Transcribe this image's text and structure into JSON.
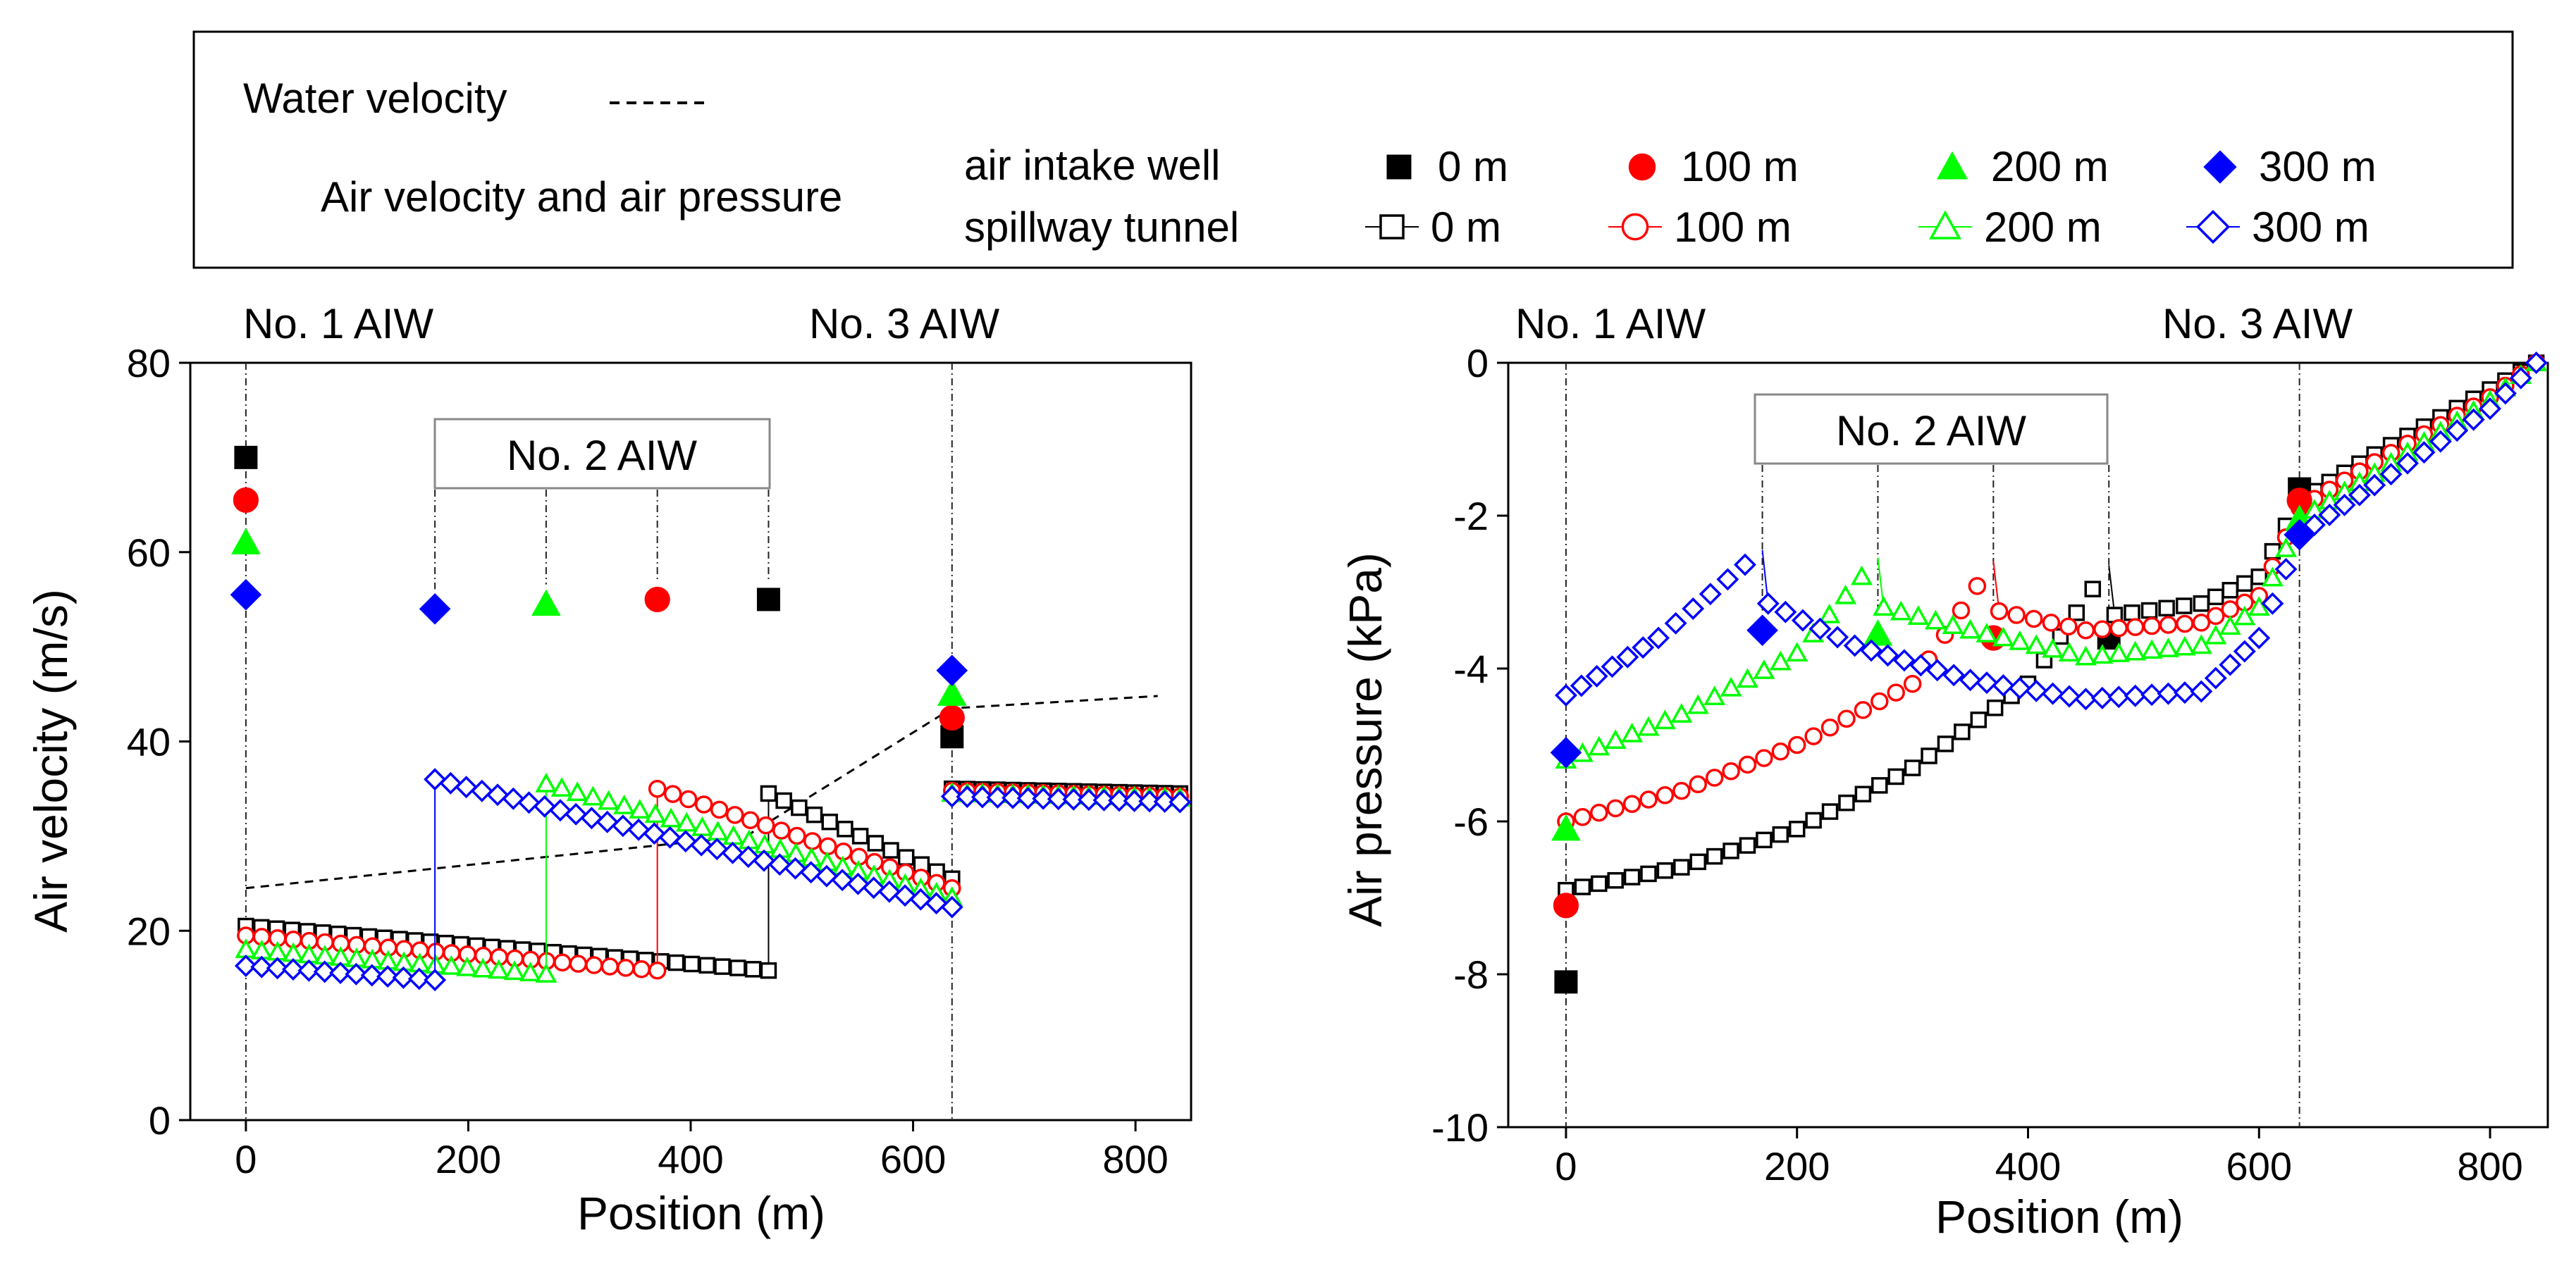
{
  "legend": {
    "water_velocity_label": "Water velocity",
    "air_label": "Air velocity and air pressure",
    "row_intake_label": "air intake well",
    "row_tunnel_label": "spillway tunnel",
    "entries": [
      {
        "label": "0 m",
        "color": "#000000",
        "filled_shape": "square",
        "open_shape": "square"
      },
      {
        "label": "100 m",
        "color": "#ff0000",
        "filled_shape": "circle",
        "open_shape": "circle"
      },
      {
        "label": "200 m",
        "color": "#00ff00",
        "filled_shape": "triangle",
        "open_shape": "triangle"
      },
      {
        "label": "300 m",
        "color": "#0000ff",
        "filled_shape": "diamond",
        "open_shape": "diamond"
      }
    ]
  },
  "chart_data": [
    {
      "type": "scatter",
      "id": "velocity",
      "xlabel": "Position (m)",
      "ylabel": "Air velocity (m/s)",
      "xlim": [
        -50,
        850
      ],
      "ylim": [
        0,
        80
      ],
      "xticks": [
        0,
        200,
        400,
        600,
        800
      ],
      "yticks": [
        0,
        20,
        40,
        60,
        80
      ],
      "annotations": {
        "aiw1": "No. 1 AIW",
        "aiw2": "No. 2 AIW",
        "aiw3": "No. 3 AIW"
      },
      "aiw_positions": {
        "aiw1": 0,
        "aiw3": 635,
        "aiw2": [
          170,
          270,
          370,
          470
        ]
      },
      "water_velocity": {
        "x": [
          0,
          450,
          635,
          820
        ],
        "y": [
          24.5,
          30,
          43.5,
          44.8
        ]
      },
      "series": [
        {
          "name": "0 m",
          "color": "#000000",
          "intake": [
            {
              "x": 0,
              "y": 70
            },
            {
              "x": 470,
              "y": 55
            },
            {
              "x": 635,
              "y": 40.5
            }
          ],
          "tunnel": [
            {
              "x0": 0,
              "x1": 470,
              "y0": 20.5,
              "y1": 15.8
            },
            {
              "x0": 470,
              "x1": 635,
              "y0": 34.5,
              "y1": 25.5
            },
            {
              "x0": 635,
              "x1": 840,
              "y0": 35,
              "y1": 34.5
            }
          ]
        },
        {
          "name": "100 m",
          "color": "#ff0000",
          "intake": [
            {
              "x": 0,
              "y": 65.5
            },
            {
              "x": 370,
              "y": 55
            },
            {
              "x": 635,
              "y": 42.5
            }
          ],
          "tunnel": [
            {
              "x0": 0,
              "x1": 370,
              "y0": 19.5,
              "y1": 15.8
            },
            {
              "x0": 370,
              "x1": 635,
              "y0": 35,
              "y1": 24.5
            },
            {
              "x0": 635,
              "x1": 840,
              "y0": 34.8,
              "y1": 34.2
            }
          ]
        },
        {
          "name": "200 m",
          "color": "#00ff00",
          "intake": [
            {
              "x": 0,
              "y": 61
            },
            {
              "x": 270,
              "y": 54.5
            },
            {
              "x": 635,
              "y": 45
            }
          ],
          "tunnel": [
            {
              "x0": 0,
              "x1": 270,
              "y0": 18,
              "y1": 15.4
            },
            {
              "x0": 270,
              "x1": 635,
              "y0": 35.5,
              "y1": 23.5
            },
            {
              "x0": 635,
              "x1": 840,
              "y0": 34.5,
              "y1": 34
            }
          ]
        },
        {
          "name": "300 m",
          "color": "#0000ff",
          "intake": [
            {
              "x": 0,
              "y": 55.5
            },
            {
              "x": 170,
              "y": 54
            },
            {
              "x": 635,
              "y": 47.5
            }
          ],
          "tunnel": [
            {
              "x0": 0,
              "x1": 170,
              "y0": 16.3,
              "y1": 14.8
            },
            {
              "x0": 170,
              "x1": 635,
              "y0": 36,
              "y1": 22.5
            },
            {
              "x0": 635,
              "x1": 840,
              "y0": 34.2,
              "y1": 33.6
            }
          ]
        }
      ]
    },
    {
      "type": "scatter",
      "id": "pressure",
      "xlabel": "Position (m)",
      "ylabel": "Air pressure (kPa)",
      "xlim": [
        -50,
        850
      ],
      "ylim": [
        -10,
        0
      ],
      "xticks": [
        0,
        200,
        400,
        600,
        800
      ],
      "yticks": [
        0,
        -2,
        -4,
        -6,
        -8,
        -10
      ],
      "annotations": {
        "aiw1": "No. 1 AIW",
        "aiw2": "No. 2 AIW",
        "aiw3": "No. 3 AIW"
      },
      "aiw_positions": {
        "aiw1": 0,
        "aiw3": 635,
        "aiw2": [
          170,
          270,
          370,
          470
        ]
      },
      "series": [
        {
          "name": "0 m",
          "color": "#000000",
          "intake": [
            {
              "x": 0,
              "y": -8.1
            },
            {
              "x": 470,
              "y": -3.6
            },
            {
              "x": 635,
              "y": -1.65
            }
          ],
          "tunnel": [
            [
              0,
              -6.9
            ],
            [
              100,
              -6.6
            ],
            [
              200,
              -6.1
            ],
            [
              300,
              -5.3
            ],
            [
              400,
              -4.2
            ],
            [
              470,
              -2.65
            ],
            [
              475,
              -3.3
            ],
            [
              550,
              -3.15
            ],
            [
              600,
              -2.8
            ],
            [
              635,
              -1.8
            ],
            [
              700,
              -1.2
            ],
            [
              800,
              -0.35
            ],
            [
              840,
              0
            ]
          ]
        },
        {
          "name": "100 m",
          "color": "#ff0000",
          "intake": [
            {
              "x": 0,
              "y": -7.1
            },
            {
              "x": 370,
              "y": -3.6
            },
            {
              "x": 635,
              "y": -1.8
            }
          ],
          "tunnel": [
            [
              0,
              -6
            ],
            [
              100,
              -5.6
            ],
            [
              200,
              -5
            ],
            [
              300,
              -4.2
            ],
            [
              370,
              -2.6
            ],
            [
              375,
              -3.25
            ],
            [
              450,
              -3.5
            ],
            [
              550,
              -3.4
            ],
            [
              600,
              -3.05
            ],
            [
              635,
              -1.9
            ],
            [
              700,
              -1.3
            ],
            [
              800,
              -0.45
            ],
            [
              840,
              0
            ]
          ]
        },
        {
          "name": "200 m",
          "color": "#00ff00",
          "intake": [
            {
              "x": 0,
              "y": -6.1
            },
            {
              "x": 270,
              "y": -3.55
            },
            {
              "x": 635,
              "y": -2.05
            }
          ],
          "tunnel": [
            [
              0,
              -5.2
            ],
            [
              100,
              -4.6
            ],
            [
              200,
              -3.8
            ],
            [
              270,
              -2.55
            ],
            [
              275,
              -3.2
            ],
            [
              350,
              -3.5
            ],
            [
              450,
              -3.85
            ],
            [
              550,
              -3.7
            ],
            [
              600,
              -3.2
            ],
            [
              635,
              -2.05
            ],
            [
              700,
              -1.45
            ],
            [
              800,
              -0.5
            ],
            [
              840,
              0
            ]
          ]
        },
        {
          "name": "300 m",
          "color": "#0000ff",
          "intake": [
            {
              "x": 0,
              "y": -5.1
            },
            {
              "x": 170,
              "y": -3.5
            },
            {
              "x": 635,
              "y": -2.25
            }
          ],
          "tunnel": [
            [
              0,
              -4.35
            ],
            [
              80,
              -3.6
            ],
            [
              170,
              -2.45
            ],
            [
              175,
              -3.15
            ],
            [
              250,
              -3.7
            ],
            [
              350,
              -4.15
            ],
            [
              450,
              -4.4
            ],
            [
              550,
              -4.3
            ],
            [
              600,
              -3.6
            ],
            [
              635,
              -2.25
            ],
            [
              700,
              -1.6
            ],
            [
              800,
              -0.6
            ],
            [
              840,
              0
            ]
          ]
        }
      ]
    }
  ]
}
